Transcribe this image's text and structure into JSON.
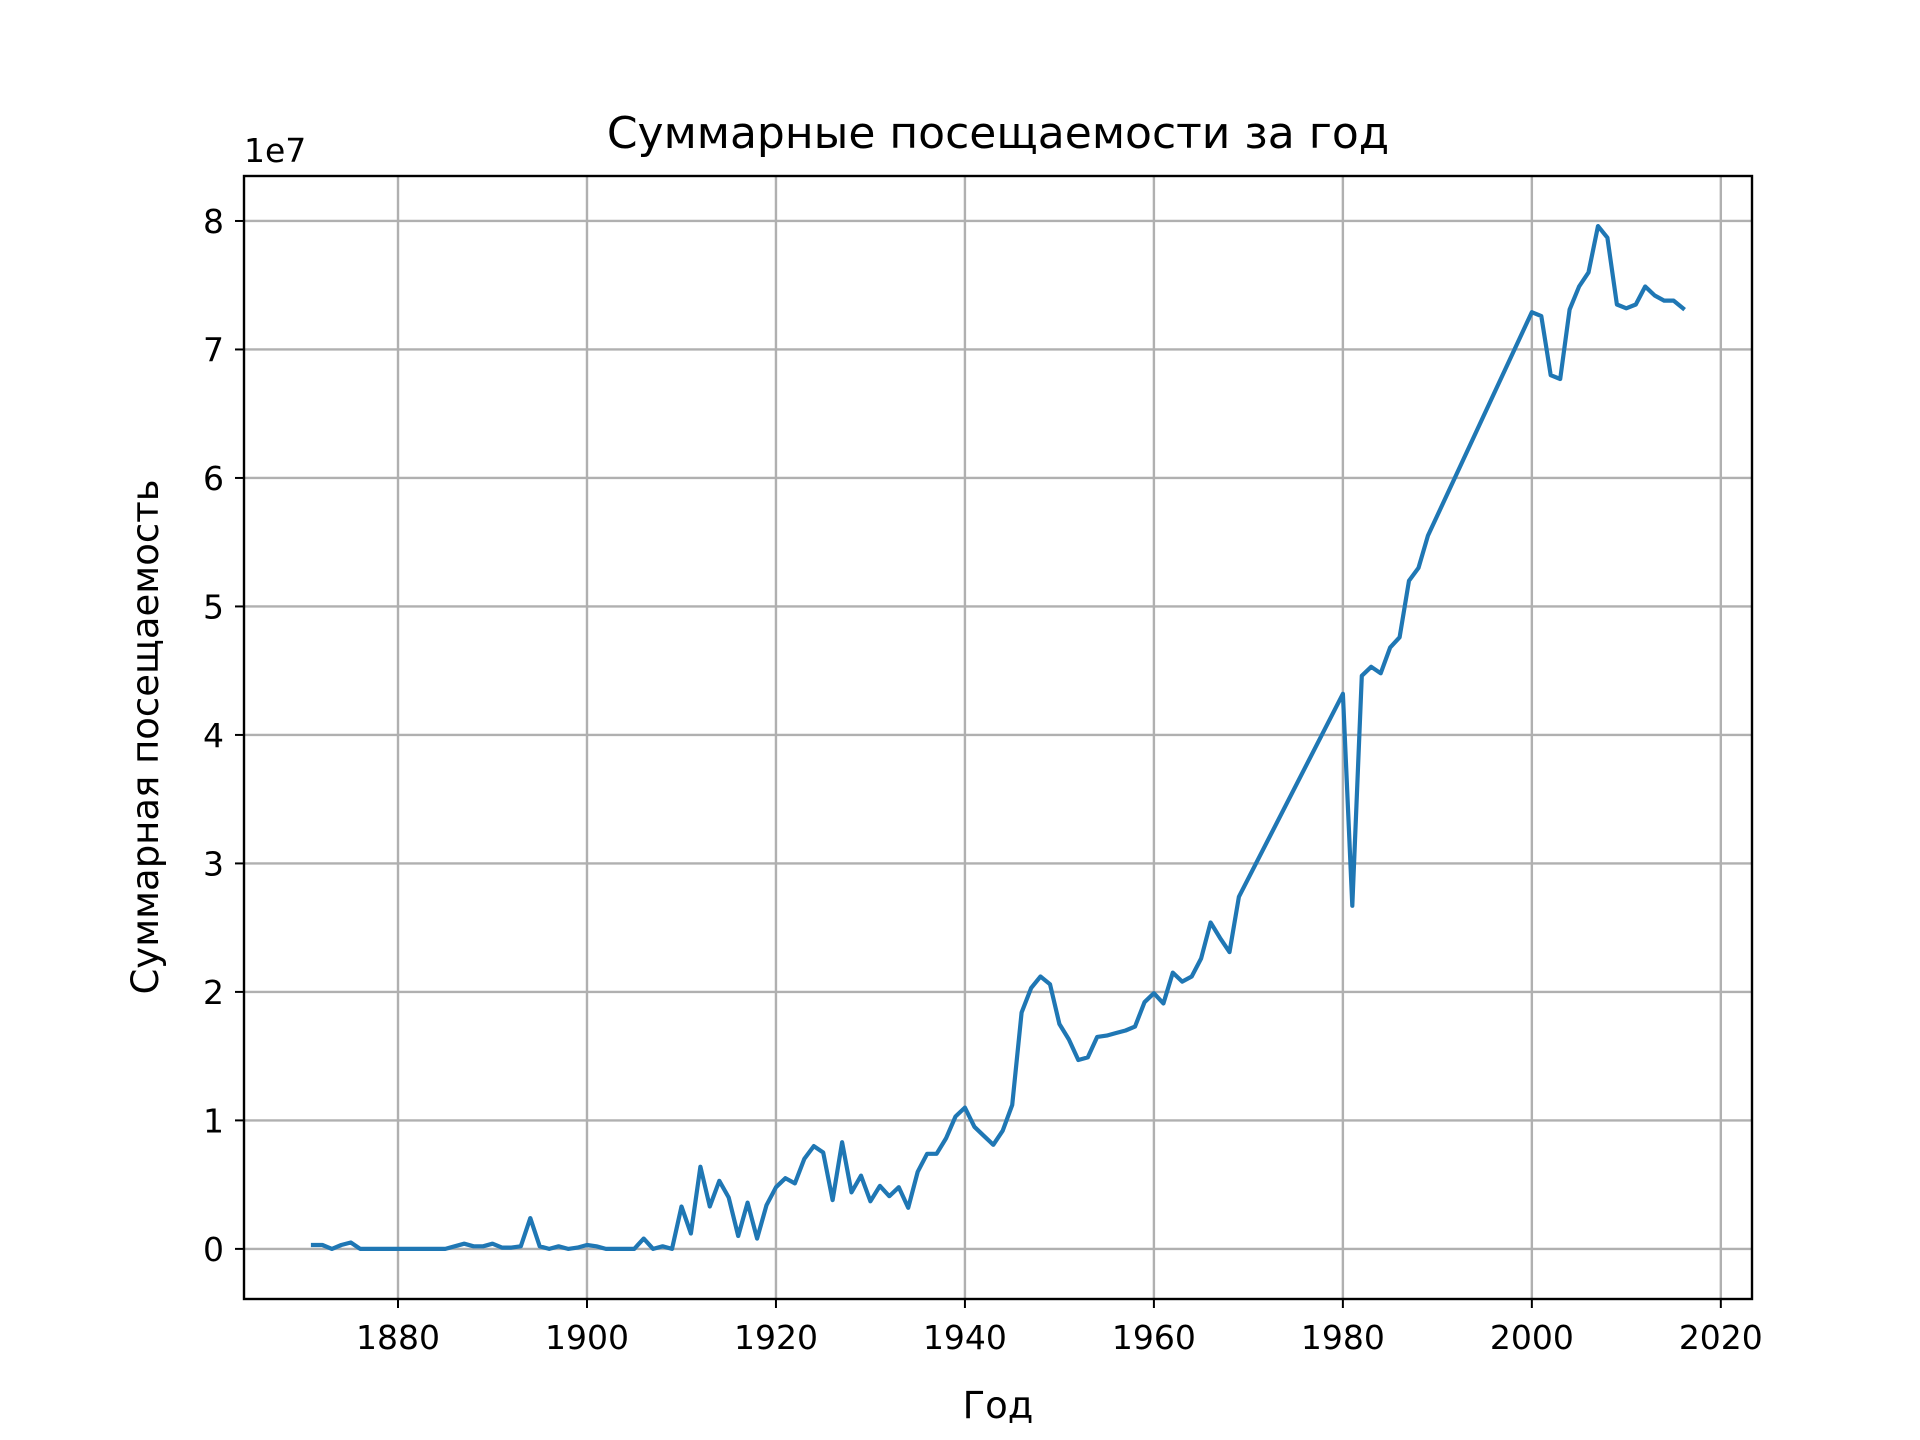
{
  "chart_data": {
    "type": "line",
    "title": "Суммарные посещаемости за год",
    "xlabel": "Год",
    "ylabel": "Суммарная посещаемость",
    "y_exponent_label": "1e7",
    "xlim": [
      1863.7,
      2023.3
    ],
    "ylim": [
      -0.39,
      8.35
    ],
    "x_ticks": [
      1880,
      1900,
      1920,
      1940,
      1960,
      1980,
      2000,
      2020
    ],
    "x_tick_labels": [
      "1880",
      "1900",
      "1920",
      "1940",
      "1960",
      "1980",
      "2000",
      "2020"
    ],
    "y_ticks": [
      0,
      1,
      2,
      3,
      4,
      5,
      6,
      7,
      8
    ],
    "y_tick_labels": [
      "0",
      "1",
      "2",
      "3",
      "4",
      "5",
      "6",
      "7",
      "8"
    ],
    "grid": true,
    "line_color": "#1f77b4",
    "series": [
      {
        "x": [
          1871,
          1872,
          1873,
          1874,
          1875,
          1876,
          1877,
          1878,
          1879,
          1880,
          1881,
          1882,
          1883,
          1884,
          1885,
          1886,
          1887,
          1888,
          1889,
          1890,
          1891,
          1892,
          1893,
          1894,
          1895,
          1896,
          1897,
          1898,
          1899,
          1900,
          1901,
          1902,
          1903,
          1904,
          1905,
          1906,
          1907,
          1908,
          1909,
          1910,
          1911,
          1912,
          1913,
          1914,
          1915,
          1916,
          1917,
          1918,
          1919,
          1920,
          1921,
          1922,
          1923,
          1924,
          1925,
          1926,
          1927,
          1928,
          1929,
          1930,
          1931,
          1932,
          1933,
          1934,
          1935,
          1936,
          1937,
          1938,
          1939,
          1940,
          1941,
          1942,
          1943,
          1944,
          1945,
          1946,
          1947,
          1948,
          1949,
          1950,
          1951,
          1952,
          1953,
          1954,
          1955,
          1956,
          1957,
          1958,
          1959,
          1960,
          1961,
          1962,
          1963,
          1964,
          1965,
          1966,
          1967,
          1968,
          1969,
          1980,
          1981,
          1982,
          1983,
          1984,
          1985,
          1986,
          1987,
          1988,
          1989,
          2000,
          2001,
          2002,
          2003,
          2004,
          2005,
          2006,
          2007,
          2008,
          2009,
          2010,
          2011,
          2012,
          2013,
          2014,
          2015,
          2016
        ],
        "y": [
          0.03,
          0.03,
          0.0,
          0.03,
          0.05,
          0.0,
          0.0,
          0.0,
          0.0,
          0.0,
          0.0,
          0.0,
          0.0,
          0.0,
          0.0,
          0.02,
          0.04,
          0.02,
          0.02,
          0.04,
          0.01,
          0.01,
          0.02,
          0.24,
          0.02,
          0.0,
          0.02,
          0.0,
          0.01,
          0.03,
          0.02,
          0.0,
          0.0,
          0.0,
          0.0,
          0.08,
          0.0,
          0.02,
          0.0,
          0.33,
          0.12,
          0.64,
          0.33,
          0.53,
          0.4,
          0.1,
          0.36,
          0.08,
          0.34,
          0.48,
          0.55,
          0.51,
          0.7,
          0.8,
          0.75,
          0.38,
          0.83,
          0.44,
          0.57,
          0.37,
          0.49,
          0.41,
          0.48,
          0.32,
          0.6,
          0.74,
          0.74,
          0.86,
          1.03,
          1.1,
          0.95,
          0.88,
          0.81,
          0.92,
          1.12,
          1.84,
          2.03,
          2.12,
          2.06,
          1.75,
          1.63,
          1.47,
          1.49,
          1.65,
          1.66,
          1.68,
          1.7,
          1.73,
          1.92,
          1.99,
          1.91,
          2.15,
          2.08,
          2.12,
          2.26,
          2.54,
          2.42,
          2.31,
          2.74,
          4.32,
          2.67,
          4.46,
          4.53,
          4.48,
          4.68,
          4.76,
          5.2,
          5.3,
          5.55,
          7.29,
          7.26,
          6.8,
          6.77,
          7.31,
          7.49,
          7.6,
          7.96,
          7.87,
          7.35,
          7.32,
          7.35,
          7.49,
          7.42,
          7.38,
          7.38,
          7.32
        ]
      }
    ]
  }
}
